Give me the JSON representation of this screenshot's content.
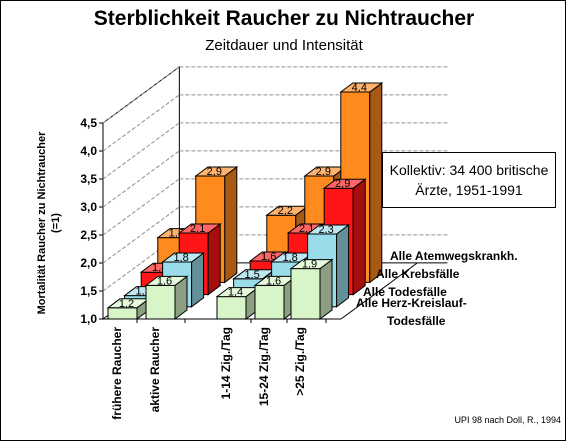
{
  "title": "Sterblichkeit Raucher zu Nichtraucher",
  "subtitle": "Zeitdauer und Intensität",
  "note_line1": "Kollektiv: 34 400 britische",
  "note_line2": "Ärzte, 1951-1991",
  "credit": "UPI 98 nach Doll, R., 1994",
  "colors": {
    "Alle Atemwegskrankh.": "#ff8a1e",
    "Alle Krebsfälle": "#ff1515",
    "Alle Todesfälle": "#99dcea",
    "Alle Herz-Kreislauf-Todesfälle": "#d7f5c8",
    "grid": "#909090"
  },
  "chart_data": {
    "type": "bar",
    "title": "Sterblichkeit Raucher zu Nichtraucher",
    "subtitle": "Zeitdauer und Intensität",
    "ylabel": "Mortalität Raucher zu Nichtraucher (=1)",
    "ylim": [
      1.0,
      4.5
    ],
    "yticks": [
      "1,0",
      "1,5",
      "2,0",
      "2,5",
      "3,0",
      "3,5",
      "4,0",
      "4,5"
    ],
    "grid": true,
    "categories": [
      "frühere Raucher",
      "aktive Raucher",
      "1-14 Zig./Tag",
      "15-24 Zig./Tag",
      ">25 Zig./Tag"
    ],
    "series": [
      {
        "name": "Alle Herz-Kreislauf-Todesfälle",
        "values": [
          1.2,
          1.6,
          1.4,
          1.6,
          1.9
        ],
        "labels": [
          "1,2",
          "1,6",
          "1,4",
          "1,6",
          "1,9"
        ]
      },
      {
        "name": "Alle Todesfälle",
        "values": [
          1.2,
          1.8,
          1.5,
          1.8,
          2.3
        ],
        "labels": [
          "1,2",
          "1,8",
          "1,5",
          "1,8",
          "2,3"
        ]
      },
      {
        "name": "Alle Krebsfälle",
        "values": [
          1.4,
          2.1,
          1.6,
          2.1,
          2.9
        ],
        "labels": [
          "1,4",
          "2,1",
          "1,6",
          "2,1",
          "2,9"
        ]
      },
      {
        "name": "Alle Atemwegskrankh.",
        "values": [
          1.8,
          2.9,
          2.2,
          2.9,
          4.4
        ],
        "labels": [
          "1,8",
          "2,9",
          "2,2",
          "2,9",
          "4,4"
        ]
      }
    ],
    "legend_lines": [
      "Alle Atemwegskrankh.",
      "Alle Krebsfälle",
      "Alle Todesfälle",
      "Alle Herz-Kreislauf-",
      "Todesfälle"
    ]
  }
}
